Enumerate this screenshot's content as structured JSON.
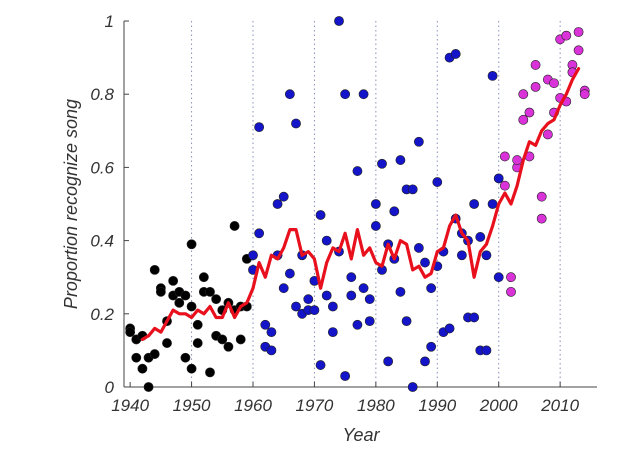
{
  "chart_data": {
    "type": "scatter",
    "xlabel": "Year",
    "ylabel": "Proportion recognize song",
    "xlim": [
      1939,
      2016
    ],
    "ylim": [
      0,
      1
    ],
    "x_ticks": [
      "1940",
      "1950",
      "1960",
      "1970",
      "1980",
      "1990",
      "2000",
      "2010"
    ],
    "y_ticks": [
      "0",
      "0.2",
      "0.4",
      "0.6",
      "0.8",
      "1"
    ],
    "grid": "vertical dotted lines at each decade",
    "colors": {
      "pre_1960": "#000000",
      "1960_2000": "#1414c8",
      "post_2000": "#d932d9",
      "trend_line": "#e8101c",
      "grid": "#8890b8",
      "axis": "#444444"
    },
    "series": [
      {
        "points": [
          {
            "x": 1940,
            "y": 0.16
          },
          {
            "x": 1940,
            "y": 0.15
          },
          {
            "x": 1941,
            "y": 0.08
          },
          {
            "x": 1941,
            "y": 0.13
          },
          {
            "x": 1942,
            "y": 0.05
          },
          {
            "x": 1942,
            "y": 0.14
          },
          {
            "x": 1943,
            "y": 0.0
          },
          {
            "x": 1943,
            "y": 0.08
          },
          {
            "x": 1944,
            "y": 0.09
          },
          {
            "x": 1944,
            "y": 0.32
          },
          {
            "x": 1945,
            "y": 0.27
          },
          {
            "x": 1945,
            "y": 0.26
          },
          {
            "x": 1946,
            "y": 0.12
          },
          {
            "x": 1946,
            "y": 0.18
          },
          {
            "x": 1947,
            "y": 0.25
          },
          {
            "x": 1947,
            "y": 0.29
          },
          {
            "x": 1948,
            "y": 0.23
          },
          {
            "x": 1948,
            "y": 0.26
          },
          {
            "x": 1949,
            "y": 0.08
          },
          {
            "x": 1949,
            "y": 0.25
          },
          {
            "x": 1950,
            "y": 0.39
          },
          {
            "x": 1950,
            "y": 0.22
          },
          {
            "x": 1950,
            "y": 0.05
          },
          {
            "x": 1951,
            "y": 0.17
          },
          {
            "x": 1951,
            "y": 0.12
          },
          {
            "x": 1952,
            "y": 0.3
          },
          {
            "x": 1952,
            "y": 0.26
          },
          {
            "x": 1953,
            "y": 0.04
          },
          {
            "x": 1953,
            "y": 0.26
          },
          {
            "x": 1954,
            "y": 0.24
          },
          {
            "x": 1954,
            "y": 0.14
          },
          {
            "x": 1955,
            "y": 0.21
          },
          {
            "x": 1955,
            "y": 0.13
          },
          {
            "x": 1956,
            "y": 0.23
          },
          {
            "x": 1956,
            "y": 0.11
          },
          {
            "x": 1957,
            "y": 0.44
          },
          {
            "x": 1957,
            "y": 0.21
          },
          {
            "x": 1958,
            "y": 0.13
          },
          {
            "x": 1958,
            "y": 0.22
          },
          {
            "x": 1959,
            "y": 0.35
          },
          {
            "x": 1959,
            "y": 0.22
          }
        ]
      },
      {
        "points": [
          {
            "x": 1960,
            "y": 0.32
          },
          {
            "x": 1960,
            "y": 0.36
          },
          {
            "x": 1961,
            "y": 0.71
          },
          {
            "x": 1961,
            "y": 0.42
          },
          {
            "x": 1962,
            "y": 0.17
          },
          {
            "x": 1962,
            "y": 0.11
          },
          {
            "x": 1963,
            "y": 0.15
          },
          {
            "x": 1963,
            "y": 0.1
          },
          {
            "x": 1964,
            "y": 0.5
          },
          {
            "x": 1964,
            "y": 0.36
          },
          {
            "x": 1965,
            "y": 0.52
          },
          {
            "x": 1965,
            "y": 0.27
          },
          {
            "x": 1966,
            "y": 0.8
          },
          {
            "x": 1966,
            "y": 0.31
          },
          {
            "x": 1967,
            "y": 0.72
          },
          {
            "x": 1967,
            "y": 0.22
          },
          {
            "x": 1968,
            "y": 0.2
          },
          {
            "x": 1968,
            "y": 0.36
          },
          {
            "x": 1969,
            "y": 0.24
          },
          {
            "x": 1969,
            "y": 0.21
          },
          {
            "x": 1970,
            "y": 0.29
          },
          {
            "x": 1970,
            "y": 0.21
          },
          {
            "x": 1971,
            "y": 0.47
          },
          {
            "x": 1971,
            "y": 0.06
          },
          {
            "x": 1972,
            "y": 0.4
          },
          {
            "x": 1972,
            "y": 0.25
          },
          {
            "x": 1973,
            "y": 0.15
          },
          {
            "x": 1973,
            "y": 0.22
          },
          {
            "x": 1974,
            "y": 1.0
          },
          {
            "x": 1974,
            "y": 0.37
          },
          {
            "x": 1975,
            "y": 0.8
          },
          {
            "x": 1975,
            "y": 0.03
          },
          {
            "x": 1976,
            "y": 0.3
          },
          {
            "x": 1976,
            "y": 0.25
          },
          {
            "x": 1977,
            "y": 0.59
          },
          {
            "x": 1977,
            "y": 0.17
          },
          {
            "x": 1978,
            "y": 0.8
          },
          {
            "x": 1978,
            "y": 0.27
          },
          {
            "x": 1979,
            "y": 0.24
          },
          {
            "x": 1979,
            "y": 0.18
          },
          {
            "x": 1980,
            "y": 0.5
          },
          {
            "x": 1980,
            "y": 0.44
          },
          {
            "x": 1981,
            "y": 0.61
          },
          {
            "x": 1981,
            "y": 0.32
          },
          {
            "x": 1982,
            "y": 0.39
          },
          {
            "x": 1982,
            "y": 0.07
          },
          {
            "x": 1983,
            "y": 0.48
          },
          {
            "x": 1983,
            "y": 0.35
          },
          {
            "x": 1984,
            "y": 0.62
          },
          {
            "x": 1984,
            "y": 0.26
          },
          {
            "x": 1985,
            "y": 0.54
          },
          {
            "x": 1985,
            "y": 0.18
          },
          {
            "x": 1986,
            "y": 0.54
          },
          {
            "x": 1986,
            "y": 0.0
          },
          {
            "x": 1987,
            "y": 0.67
          },
          {
            "x": 1987,
            "y": 0.38
          },
          {
            "x": 1988,
            "y": 0.07
          },
          {
            "x": 1988,
            "y": 0.34
          },
          {
            "x": 1989,
            "y": 0.11
          },
          {
            "x": 1989,
            "y": 0.27
          },
          {
            "x": 1990,
            "y": 0.56
          },
          {
            "x": 1990,
            "y": 0.33
          },
          {
            "x": 1991,
            "y": 0.15
          },
          {
            "x": 1991,
            "y": 0.37
          },
          {
            "x": 1992,
            "y": 0.9
          },
          {
            "x": 1992,
            "y": 0.16
          },
          {
            "x": 1993,
            "y": 0.91
          },
          {
            "x": 1993,
            "y": 0.46
          },
          {
            "x": 1994,
            "y": 0.42
          },
          {
            "x": 1994,
            "y": 0.36
          },
          {
            "x": 1995,
            "y": 0.19
          },
          {
            "x": 1995,
            "y": 0.4
          },
          {
            "x": 1996,
            "y": 0.5
          },
          {
            "x": 1996,
            "y": 0.19
          },
          {
            "x": 1997,
            "y": 0.1
          },
          {
            "x": 1997,
            "y": 0.41
          },
          {
            "x": 1998,
            "y": 0.1
          },
          {
            "x": 1998,
            "y": 0.36
          },
          {
            "x": 1999,
            "y": 0.85
          },
          {
            "x": 1999,
            "y": 0.5
          },
          {
            "x": 2000,
            "y": 0.57
          },
          {
            "x": 2000,
            "y": 0.3
          }
        ]
      },
      {
        "points": [
          {
            "x": 2001,
            "y": 0.63
          },
          {
            "x": 2001,
            "y": 0.55
          },
          {
            "x": 2002,
            "y": 0.3
          },
          {
            "x": 2002,
            "y": 0.26
          },
          {
            "x": 2003,
            "y": 0.6
          },
          {
            "x": 2003,
            "y": 0.62
          },
          {
            "x": 2004,
            "y": 0.8
          },
          {
            "x": 2004,
            "y": 0.73
          },
          {
            "x": 2005,
            "y": 0.75
          },
          {
            "x": 2005,
            "y": 0.63
          },
          {
            "x": 2006,
            "y": 0.88
          },
          {
            "x": 2006,
            "y": 0.82
          },
          {
            "x": 2007,
            "y": 0.52
          },
          {
            "x": 2007,
            "y": 0.46
          },
          {
            "x": 2008,
            "y": 0.84
          },
          {
            "x": 2008,
            "y": 0.69
          },
          {
            "x": 2009,
            "y": 0.75
          },
          {
            "x": 2009,
            "y": 0.83
          },
          {
            "x": 2010,
            "y": 0.95
          },
          {
            "x": 2010,
            "y": 0.79
          },
          {
            "x": 2011,
            "y": 0.96
          },
          {
            "x": 2011,
            "y": 0.78
          },
          {
            "x": 2012,
            "y": 0.88
          },
          {
            "x": 2012,
            "y": 0.86
          },
          {
            "x": 2013,
            "y": 0.97
          },
          {
            "x": 2013,
            "y": 0.92
          },
          {
            "x": 2014,
            "y": 0.81
          },
          {
            "x": 2014,
            "y": 0.8
          }
        ]
      }
    ],
    "trend_line": {
      "x": [
        1942,
        1943,
        1944,
        1945,
        1946,
        1947,
        1948,
        1949,
        1950,
        1951,
        1952,
        1953,
        1954,
        1955,
        1956,
        1957,
        1958,
        1959,
        1960,
        1961,
        1962,
        1963,
        1964,
        1965,
        1966,
        1967,
        1968,
        1969,
        1970,
        1971,
        1972,
        1973,
        1974,
        1975,
        1976,
        1977,
        1978,
        1979,
        1980,
        1981,
        1982,
        1983,
        1984,
        1985,
        1986,
        1987,
        1988,
        1989,
        1990,
        1991,
        1992,
        1993,
        1994,
        1995,
        1996,
        1997,
        1998,
        1999,
        2000,
        2001,
        2002,
        2003,
        2004,
        2005,
        2006,
        2007,
        2008,
        2009,
        2010,
        2011,
        2012,
        2013
      ],
      "y": [
        0.13,
        0.14,
        0.16,
        0.15,
        0.18,
        0.21,
        0.2,
        0.2,
        0.19,
        0.21,
        0.2,
        0.22,
        0.19,
        0.19,
        0.23,
        0.19,
        0.22,
        0.23,
        0.27,
        0.34,
        0.3,
        0.36,
        0.35,
        0.38,
        0.43,
        0.43,
        0.36,
        0.37,
        0.35,
        0.27,
        0.34,
        0.38,
        0.37,
        0.42,
        0.35,
        0.43,
        0.36,
        0.38,
        0.34,
        0.33,
        0.39,
        0.35,
        0.4,
        0.39,
        0.32,
        0.33,
        0.3,
        0.31,
        0.37,
        0.38,
        0.44,
        0.47,
        0.42,
        0.4,
        0.3,
        0.37,
        0.39,
        0.44,
        0.5,
        0.53,
        0.5,
        0.55,
        0.62,
        0.67,
        0.66,
        0.7,
        0.72,
        0.73,
        0.77,
        0.8,
        0.84,
        0.87
      ]
    }
  }
}
